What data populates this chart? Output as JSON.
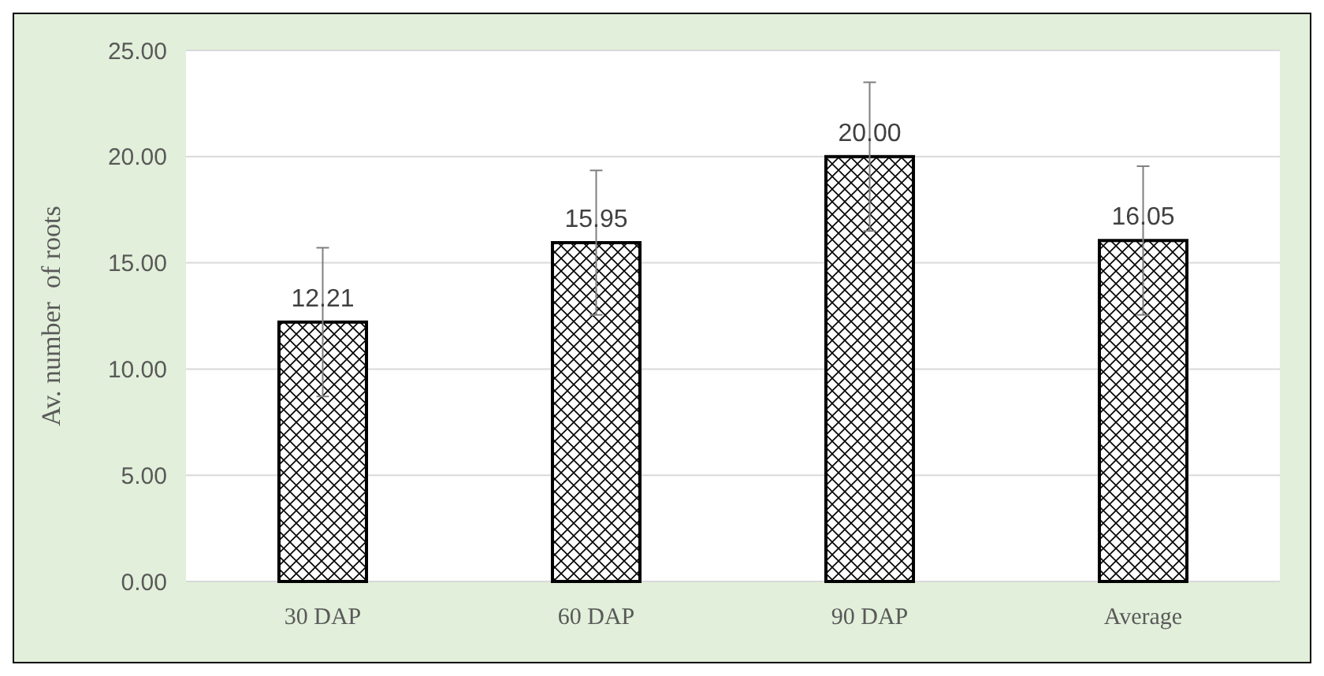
{
  "chart_data": {
    "type": "bar",
    "ylabel": "Av. number  of roots",
    "categories": [
      "30 DAP",
      "60 DAP",
      "90 DAP",
      "Average"
    ],
    "values": [
      12.21,
      15.95,
      20.0,
      16.05
    ],
    "errors": [
      3.5,
      3.4,
      3.5,
      3.5
    ],
    "color": "#000000",
    "ylim": [
      0,
      25
    ],
    "yticks": [
      {
        "value": 0,
        "label": "0.00"
      },
      {
        "value": 5,
        "label": "5.00"
      },
      {
        "value": 10,
        "label": "10.00"
      },
      {
        "value": 15,
        "label": "15.00"
      },
      {
        "value": 20,
        "label": "20.00"
      },
      {
        "value": 25,
        "label": "25.00"
      }
    ],
    "grid": "y",
    "value_labels": [
      "12.21",
      "15.95",
      "20.00",
      "16.05"
    ]
  }
}
